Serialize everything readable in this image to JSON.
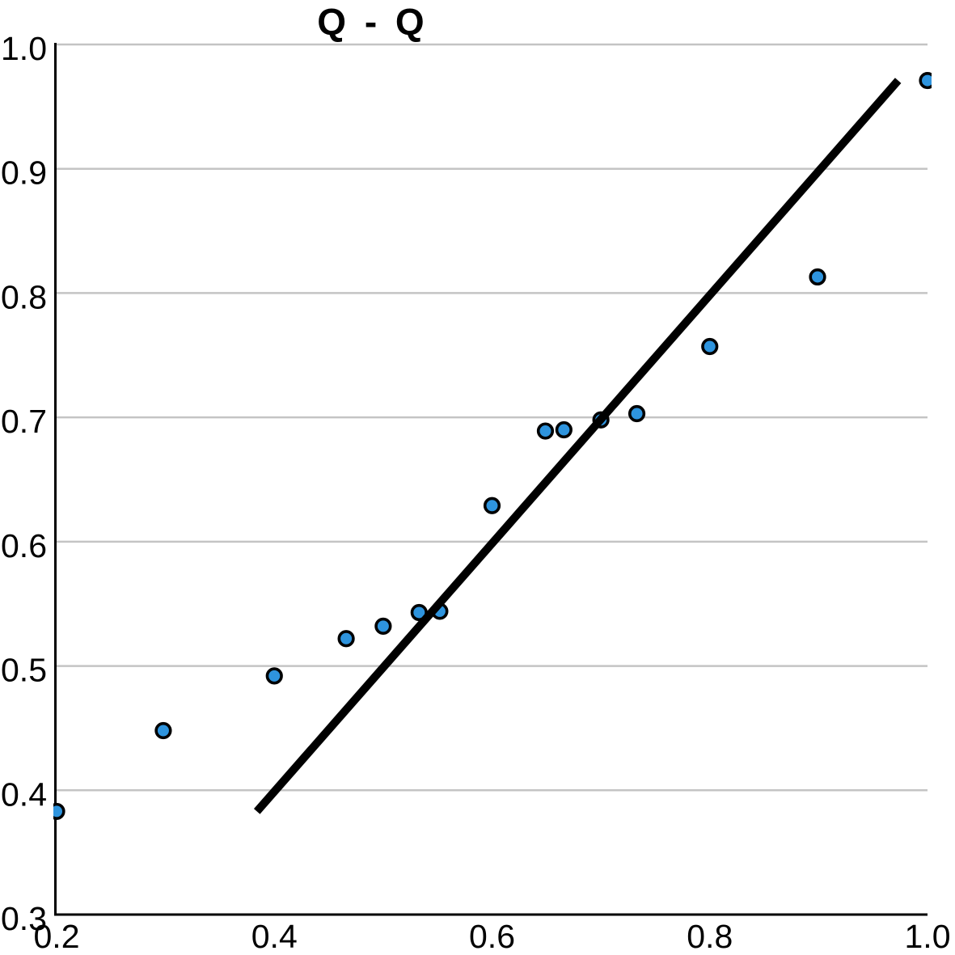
{
  "chart_data": {
    "type": "scatter",
    "title": "Q - Q",
    "xlabel": "",
    "ylabel": "",
    "xlim": [
      0.2,
      1.0
    ],
    "ylim": [
      0.3,
      1.0
    ],
    "x_tick_values": [
      0.2,
      0.4,
      0.6,
      0.8,
      1.0
    ],
    "x_tick_labels": [
      "0.2",
      "0.4",
      "0.6",
      "0.8",
      "1.0"
    ],
    "y_tick_values": [
      0.3,
      0.4,
      0.5,
      0.6,
      0.7,
      0.8,
      0.9,
      1.0
    ],
    "y_tick_labels": [
      "0.3",
      "0.4",
      "0.5",
      "0.6",
      "0.7",
      "0.8",
      "0.9",
      "1.0"
    ],
    "grid": "horizontal",
    "legend": "none",
    "points": [
      [
        0.2,
        0.383
      ],
      [
        0.298,
        0.448
      ],
      [
        0.4,
        0.492
      ],
      [
        0.466,
        0.522
      ],
      [
        0.5,
        0.532
      ],
      [
        0.533,
        0.543
      ],
      [
        0.552,
        0.544
      ],
      [
        0.6,
        0.629
      ],
      [
        0.649,
        0.689
      ],
      [
        0.666,
        0.69
      ],
      [
        0.7,
        0.698
      ],
      [
        0.733,
        0.703
      ],
      [
        0.8,
        0.757
      ],
      [
        0.899,
        0.813
      ],
      [
        1.0,
        0.971
      ]
    ],
    "reference_line": {
      "x1": 0.384,
      "y1": 0.383,
      "x2": 0.973,
      "y2": 0.971
    },
    "colors": {
      "marker_fill": "#2E94DE",
      "marker_edge": "#000000",
      "reference_line": "#000000",
      "grid": "#C4C4C4",
      "axis": "#000000",
      "background": "#FFFFFF",
      "title": "#000000"
    }
  }
}
